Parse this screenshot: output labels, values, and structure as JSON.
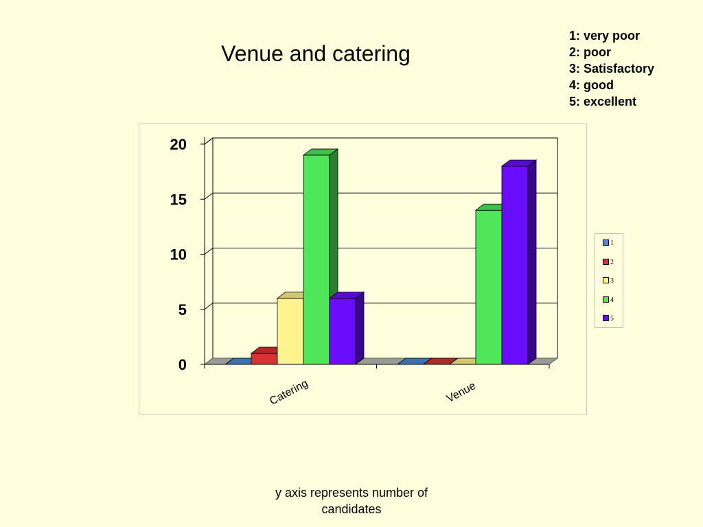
{
  "slide": {
    "title": "Venue and catering",
    "scale_key": [
      "1: very poor",
      "2: poor",
      "3: Satisfactory",
      "4: good",
      "5: excellent"
    ],
    "footnote": "y axis represents number of candidates"
  },
  "chart_data": {
    "type": "bar",
    "title": "",
    "xlabel": "",
    "ylabel": "",
    "categories": [
      "Catering",
      "Venue"
    ],
    "ylim": [
      0,
      20
    ],
    "yticks": [
      0,
      5,
      10,
      15,
      20
    ],
    "grid": true,
    "style": "3d-clustered-column",
    "legend_position": "right",
    "series": [
      {
        "name": "1",
        "values": [
          0,
          0
        ],
        "color": "#4A88D6"
      },
      {
        "name": "2",
        "values": [
          1,
          0
        ],
        "color": "#D83232"
      },
      {
        "name": "3",
        "values": [
          6,
          0
        ],
        "color": "#FFF38E"
      },
      {
        "name": "4",
        "values": [
          19,
          14
        ],
        "color": "#4FE75A"
      },
      {
        "name": "5",
        "values": [
          6,
          18
        ],
        "color": "#6A0DFF"
      }
    ]
  }
}
